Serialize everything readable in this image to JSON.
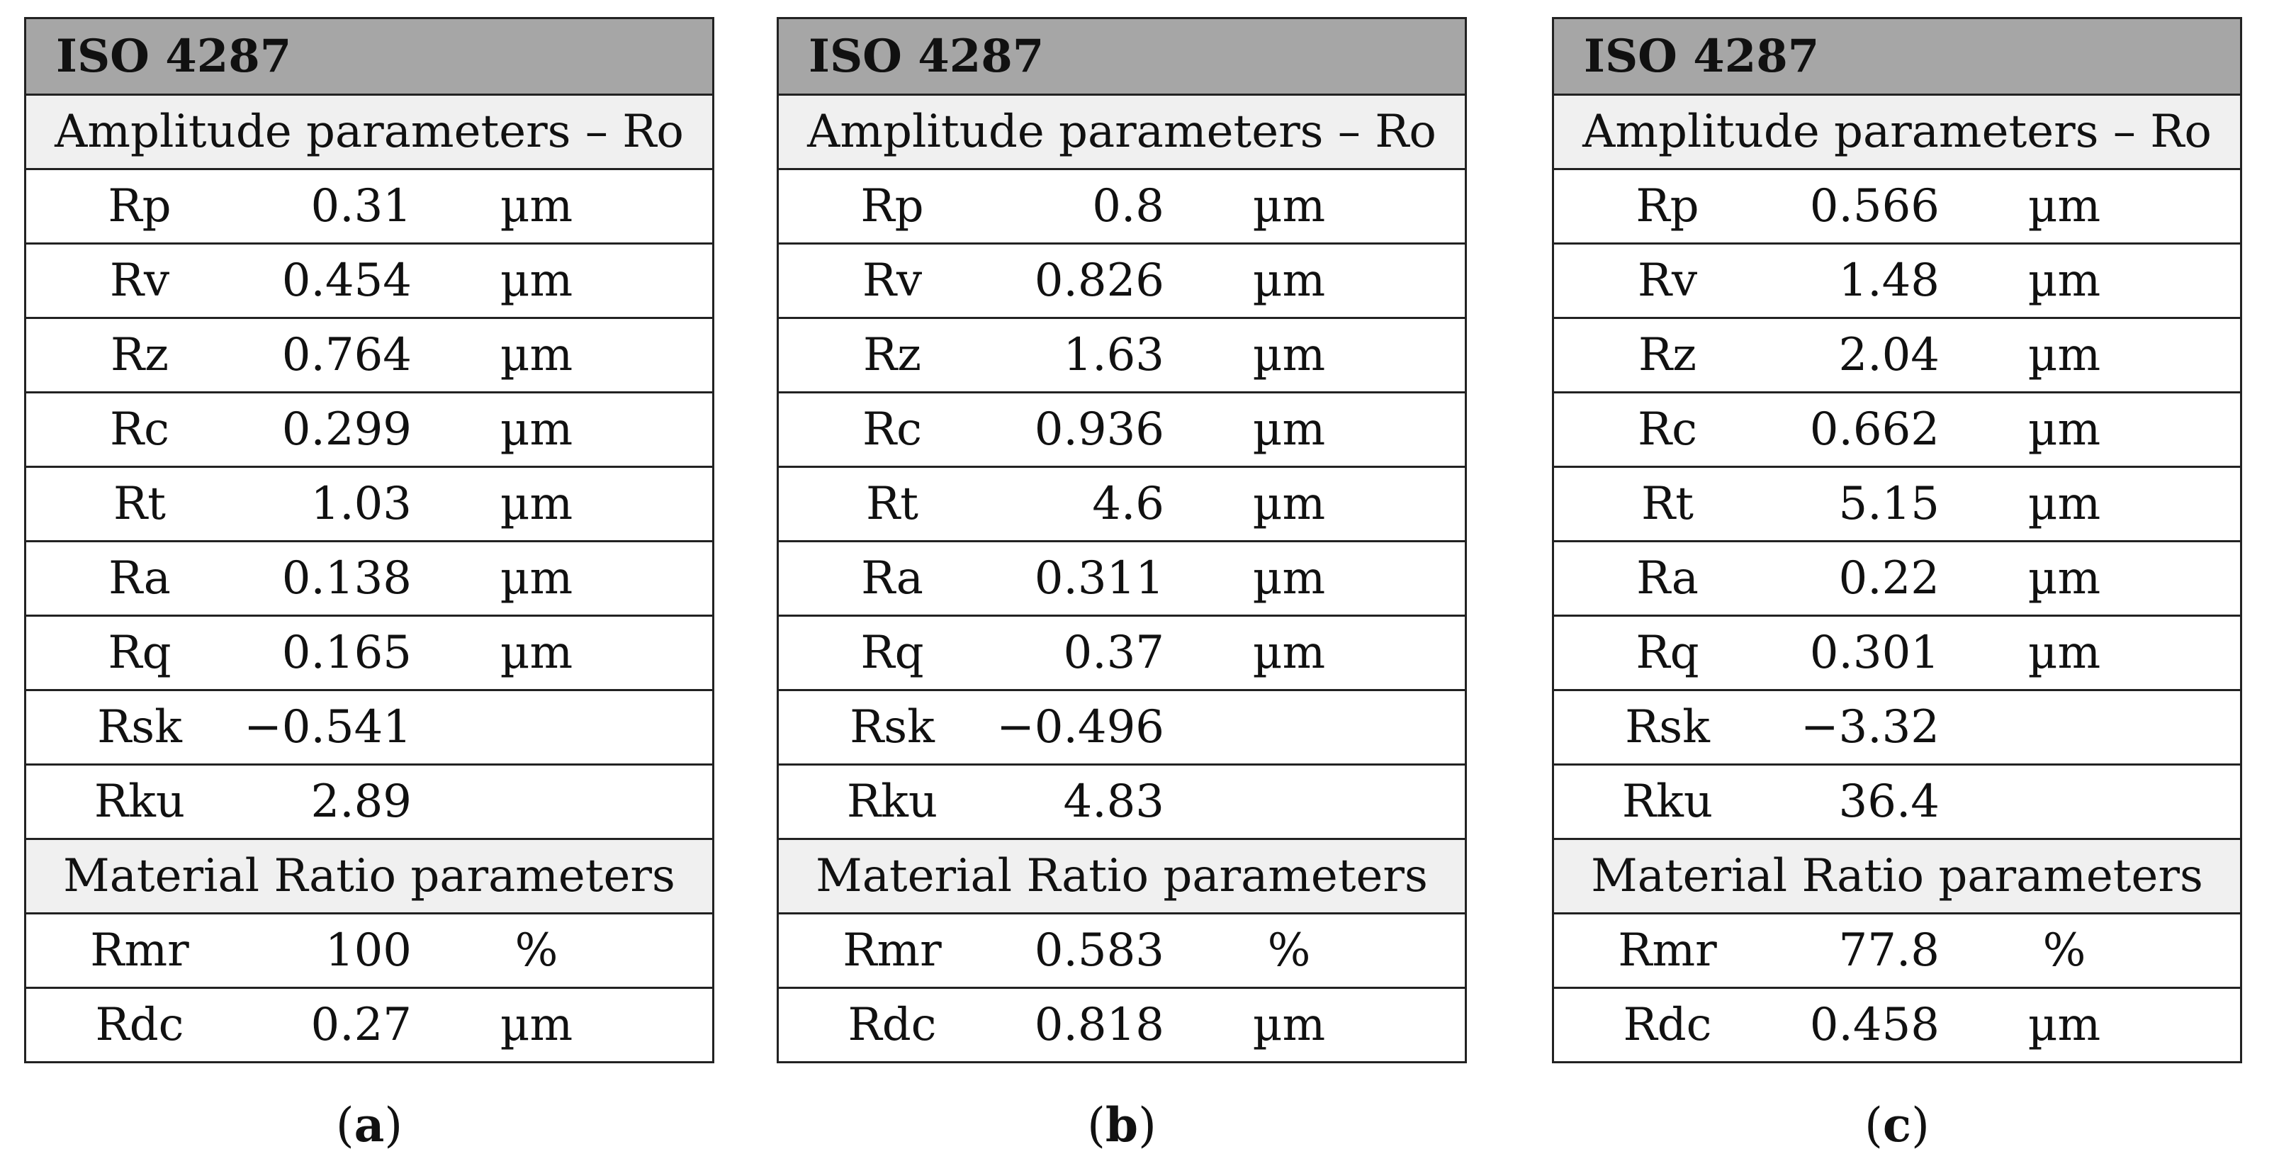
{
  "panels": [
    {
      "title": "ISO 4287",
      "amplitude_header": "Amplitude parameters – Ro",
      "material_header": "Material Ratio parameters",
      "amplitude_rows": [
        {
          "name": "Rp",
          "value": "0.31",
          "unit": "µm"
        },
        {
          "name": "Rv",
          "value": "0.454",
          "unit": "µm"
        },
        {
          "name": "Rz",
          "value": "0.764",
          "unit": "µm"
        },
        {
          "name": "Rc",
          "value": "0.299",
          "unit": "µm"
        },
        {
          "name": "Rt",
          "value": "1.03",
          "unit": "µm"
        },
        {
          "name": "Ra",
          "value": "0.138",
          "unit": "µm"
        },
        {
          "name": "Rq",
          "value": "0.165",
          "unit": "µm"
        },
        {
          "name": "Rsk",
          "value": "−0.541",
          "unit": ""
        },
        {
          "name": "Rku",
          "value": "2.89",
          "unit": ""
        }
      ],
      "material_rows": [
        {
          "name": "Rmr",
          "value": "100",
          "unit": "%"
        },
        {
          "name": "Rdc",
          "value": "0.27",
          "unit": "µm"
        }
      ],
      "caption_open": "(",
      "caption_letter": "a",
      "caption_close": ")"
    },
    {
      "title": "ISO 4287",
      "amplitude_header": "Amplitude parameters – Ro",
      "material_header": "Material Ratio parameters",
      "amplitude_rows": [
        {
          "name": "Rp",
          "value": "0.8",
          "unit": "µm"
        },
        {
          "name": "Rv",
          "value": "0.826",
          "unit": "µm"
        },
        {
          "name": "Rz",
          "value": "1.63",
          "unit": "µm"
        },
        {
          "name": "Rc",
          "value": "0.936",
          "unit": "µm"
        },
        {
          "name": "Rt",
          "value": "4.6",
          "unit": "µm"
        },
        {
          "name": "Ra",
          "value": "0.311",
          "unit": "µm"
        },
        {
          "name": "Rq",
          "value": "0.37",
          "unit": "µm"
        },
        {
          "name": "Rsk",
          "value": "−0.496",
          "unit": ""
        },
        {
          "name": "Rku",
          "value": "4.83",
          "unit": ""
        }
      ],
      "material_rows": [
        {
          "name": "Rmr",
          "value": "0.583",
          "unit": "%"
        },
        {
          "name": "Rdc",
          "value": "0.818",
          "unit": "µm"
        }
      ],
      "caption_open": "(",
      "caption_letter": "b",
      "caption_close": ")"
    },
    {
      "title": "ISO 4287",
      "amplitude_header": "Amplitude parameters – Ro",
      "material_header": "Material Ratio parameters",
      "amplitude_rows": [
        {
          "name": "Rp",
          "value": "0.566",
          "unit": "µm"
        },
        {
          "name": "Rv",
          "value": "1.48",
          "unit": "µm"
        },
        {
          "name": "Rz",
          "value": "2.04",
          "unit": "µm"
        },
        {
          "name": "Rc",
          "value": "0.662",
          "unit": "µm"
        },
        {
          "name": "Rt",
          "value": "5.15",
          "unit": "µm"
        },
        {
          "name": "Ra",
          "value": "0.22",
          "unit": "µm"
        },
        {
          "name": "Rq",
          "value": "0.301",
          "unit": "µm"
        },
        {
          "name": "Rsk",
          "value": "−3.32",
          "unit": ""
        },
        {
          "name": "Rku",
          "value": "36.4",
          "unit": ""
        }
      ],
      "material_rows": [
        {
          "name": "Rmr",
          "value": "77.8",
          "unit": "%"
        },
        {
          "name": "Rdc",
          "value": "0.458",
          "unit": "µm"
        }
      ],
      "caption_open": "(",
      "caption_letter": "c",
      "caption_close": ")"
    }
  ]
}
